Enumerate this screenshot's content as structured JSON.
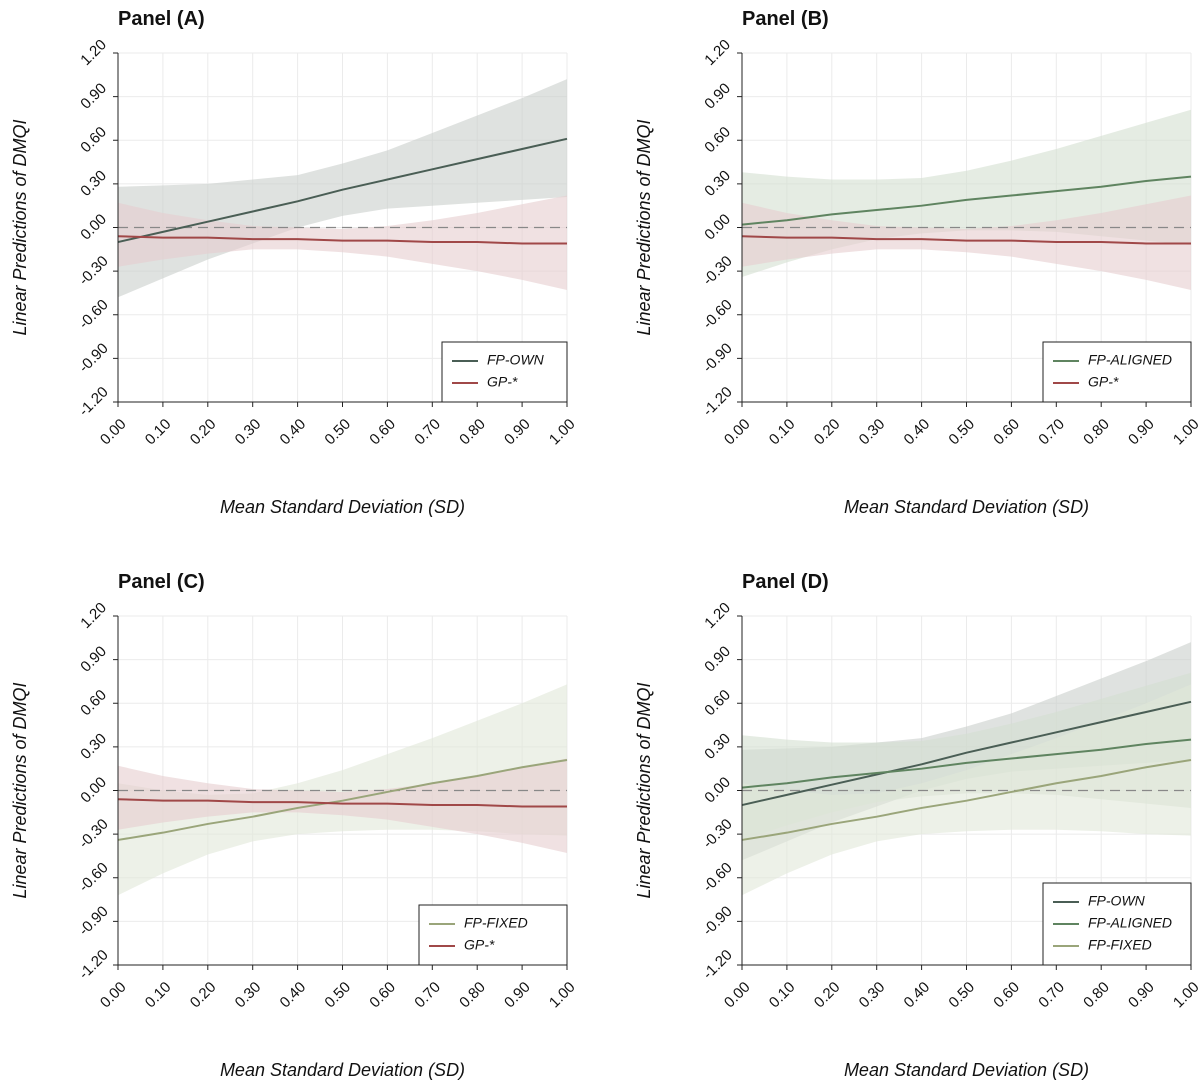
{
  "chart_data": [
    {
      "type": "line",
      "title": "Panel (A)",
      "xlabel": "Mean Standard Deviation (SD)",
      "ylabel": "Linear Predictions of DMQI",
      "x": [
        0,
        0.1,
        0.2,
        0.3,
        0.4,
        0.5,
        0.6,
        0.7,
        0.8,
        0.9,
        1.0
      ],
      "xlim": [
        0,
        1
      ],
      "ylim": [
        -1.2,
        1.2
      ],
      "xticks": [
        {
          "value": 0,
          "label": "0.00"
        },
        {
          "value": 0.1,
          "label": "0.10"
        },
        {
          "value": 0.2,
          "label": "0.20"
        },
        {
          "value": 0.3,
          "label": "0.30"
        },
        {
          "value": 0.4,
          "label": "0.40"
        },
        {
          "value": 0.5,
          "label": "0.50"
        },
        {
          "value": 0.6,
          "label": "0.60"
        },
        {
          "value": 0.7,
          "label": "0.70"
        },
        {
          "value": 0.8,
          "label": "0.80"
        },
        {
          "value": 0.9,
          "label": "0.90"
        },
        {
          "value": 1,
          "label": "1.00"
        }
      ],
      "yticks": [
        {
          "value": -1.2,
          "label": "-1.20"
        },
        {
          "value": -0.9,
          "label": "-0.90"
        },
        {
          "value": -0.6,
          "label": "-0.60"
        },
        {
          "value": -0.3,
          "label": "-0.30"
        },
        {
          "value": 0,
          "label": "0.00"
        },
        {
          "value": 0.3,
          "label": "0.30"
        },
        {
          "value": 0.6,
          "label": "0.60"
        },
        {
          "value": 0.9,
          "label": "0.90"
        },
        {
          "value": 1.2,
          "label": "1.20"
        }
      ],
      "grid": true,
      "reference_line": 0,
      "legend_position": "lower right",
      "series": [
        {
          "name": "FP-OWN",
          "color": "#4a5e55",
          "band_color": "#c9cecc",
          "values": [
            -0.1,
            -0.03,
            0.04,
            0.11,
            0.18,
            0.26,
            0.33,
            0.4,
            0.47,
            0.54,
            0.61
          ],
          "lower": [
            -0.48,
            -0.35,
            -0.22,
            -0.11,
            0.0,
            0.08,
            0.13,
            0.15,
            0.17,
            0.19,
            0.21
          ],
          "upper": [
            0.28,
            0.29,
            0.3,
            0.33,
            0.36,
            0.44,
            0.53,
            0.65,
            0.77,
            0.89,
            1.02
          ]
        },
        {
          "name": "GP-*",
          "color": "#a04848",
          "band_color": "#e6cdce",
          "values": [
            -0.06,
            -0.07,
            -0.07,
            -0.08,
            -0.08,
            -0.09,
            -0.09,
            -0.1,
            -0.1,
            -0.11,
            -0.11
          ],
          "lower": [
            -0.27,
            -0.22,
            -0.18,
            -0.15,
            -0.15,
            -0.17,
            -0.2,
            -0.25,
            -0.3,
            -0.36,
            -0.43
          ],
          "upper": [
            0.17,
            0.1,
            0.05,
            0.01,
            0.0,
            -0.01,
            0.01,
            0.05,
            0.1,
            0.16,
            0.22
          ]
        }
      ]
    },
    {
      "type": "line",
      "title": "Panel (B)",
      "xlabel": "Mean Standard Deviation (SD)",
      "ylabel": "Linear Predictions of DMQI",
      "x": [
        0,
        0.1,
        0.2,
        0.3,
        0.4,
        0.5,
        0.6,
        0.7,
        0.8,
        0.9,
        1.0
      ],
      "xlim": [
        0,
        1
      ],
      "ylim": [
        -1.2,
        1.2
      ],
      "xticks": [
        {
          "value": 0,
          "label": "0.00"
        },
        {
          "value": 0.1,
          "label": "0.10"
        },
        {
          "value": 0.2,
          "label": "0.20"
        },
        {
          "value": 0.3,
          "label": "0.30"
        },
        {
          "value": 0.4,
          "label": "0.40"
        },
        {
          "value": 0.5,
          "label": "0.50"
        },
        {
          "value": 0.6,
          "label": "0.60"
        },
        {
          "value": 0.7,
          "label": "0.70"
        },
        {
          "value": 0.8,
          "label": "0.80"
        },
        {
          "value": 0.9,
          "label": "0.90"
        },
        {
          "value": 1,
          "label": "1.00"
        }
      ],
      "yticks": [
        {
          "value": -1.2,
          "label": "-1.20"
        },
        {
          "value": -0.9,
          "label": "-0.90"
        },
        {
          "value": -0.6,
          "label": "-0.60"
        },
        {
          "value": -0.3,
          "label": "-0.30"
        },
        {
          "value": 0,
          "label": "0.00"
        },
        {
          "value": 0.3,
          "label": "0.30"
        },
        {
          "value": 0.6,
          "label": "0.60"
        },
        {
          "value": 0.9,
          "label": "0.90"
        },
        {
          "value": 1.2,
          "label": "1.20"
        }
      ],
      "grid": true,
      "reference_line": 0,
      "legend_position": "lower right",
      "series": [
        {
          "name": "FP-ALIGNED",
          "color": "#5f8460",
          "band_color": "#d3e0d1",
          "values": [
            0.02,
            0.05,
            0.09,
            0.12,
            0.15,
            0.19,
            0.22,
            0.25,
            0.28,
            0.32,
            0.35
          ],
          "lower": [
            -0.34,
            -0.24,
            -0.15,
            -0.08,
            -0.04,
            -0.02,
            -0.02,
            -0.03,
            -0.06,
            -0.09,
            -0.12
          ],
          "upper": [
            0.38,
            0.35,
            0.33,
            0.33,
            0.34,
            0.39,
            0.46,
            0.54,
            0.63,
            0.72,
            0.81
          ]
        },
        {
          "name": "GP-*",
          "color": "#a04848",
          "band_color": "#e6cdce",
          "values": [
            -0.06,
            -0.07,
            -0.07,
            -0.08,
            -0.08,
            -0.09,
            -0.09,
            -0.1,
            -0.1,
            -0.11,
            -0.11
          ],
          "lower": [
            -0.27,
            -0.22,
            -0.18,
            -0.15,
            -0.15,
            -0.17,
            -0.2,
            -0.25,
            -0.3,
            -0.36,
            -0.43
          ],
          "upper": [
            0.17,
            0.1,
            0.05,
            0.01,
            0.0,
            -0.01,
            0.01,
            0.05,
            0.1,
            0.16,
            0.22
          ]
        }
      ]
    },
    {
      "type": "line",
      "title": "Panel (C)",
      "xlabel": "Mean Standard Deviation (SD)",
      "ylabel": "Linear Predictions of DMQI",
      "x": [
        0,
        0.1,
        0.2,
        0.3,
        0.4,
        0.5,
        0.6,
        0.7,
        0.8,
        0.9,
        1.0
      ],
      "xlim": [
        0,
        1
      ],
      "ylim": [
        -1.2,
        1.2
      ],
      "xticks": [
        {
          "value": 0,
          "label": "0.00"
        },
        {
          "value": 0.1,
          "label": "0.10"
        },
        {
          "value": 0.2,
          "label": "0.20"
        },
        {
          "value": 0.3,
          "label": "0.30"
        },
        {
          "value": 0.4,
          "label": "0.40"
        },
        {
          "value": 0.5,
          "label": "0.50"
        },
        {
          "value": 0.6,
          "label": "0.60"
        },
        {
          "value": 0.7,
          "label": "0.70"
        },
        {
          "value": 0.8,
          "label": "0.80"
        },
        {
          "value": 0.9,
          "label": "0.90"
        },
        {
          "value": 1,
          "label": "1.00"
        }
      ],
      "yticks": [
        {
          "value": -1.2,
          "label": "-1.20"
        },
        {
          "value": -0.9,
          "label": "-0.90"
        },
        {
          "value": -0.6,
          "label": "-0.60"
        },
        {
          "value": -0.3,
          "label": "-0.30"
        },
        {
          "value": 0,
          "label": "0.00"
        },
        {
          "value": 0.3,
          "label": "0.30"
        },
        {
          "value": 0.6,
          "label": "0.60"
        },
        {
          "value": 0.9,
          "label": "0.90"
        },
        {
          "value": 1.2,
          "label": "1.20"
        }
      ],
      "grid": true,
      "reference_line": 0,
      "legend_position": "lower right",
      "series": [
        {
          "name": "FP-FIXED",
          "color": "#9aa57a",
          "band_color": "#e1e7d9",
          "values": [
            -0.34,
            -0.29,
            -0.23,
            -0.18,
            -0.12,
            -0.07,
            -0.01,
            0.05,
            0.1,
            0.16,
            0.21
          ],
          "lower": [
            -0.72,
            -0.57,
            -0.44,
            -0.35,
            -0.3,
            -0.28,
            -0.27,
            -0.27,
            -0.28,
            -0.3,
            -0.31
          ],
          "upper": [
            0.05,
            0.0,
            -0.03,
            -0.02,
            0.05,
            0.14,
            0.25,
            0.36,
            0.48,
            0.6,
            0.73
          ]
        },
        {
          "name": "GP-*",
          "color": "#a04848",
          "band_color": "#e6cdce",
          "values": [
            -0.06,
            -0.07,
            -0.07,
            -0.08,
            -0.08,
            -0.09,
            -0.09,
            -0.1,
            -0.1,
            -0.11,
            -0.11
          ],
          "lower": [
            -0.27,
            -0.22,
            -0.18,
            -0.15,
            -0.15,
            -0.17,
            -0.2,
            -0.25,
            -0.3,
            -0.36,
            -0.43
          ],
          "upper": [
            0.17,
            0.1,
            0.05,
            0.01,
            0.0,
            -0.01,
            0.01,
            0.05,
            0.1,
            0.16,
            0.22
          ]
        }
      ]
    },
    {
      "type": "line",
      "title": "Panel (D)",
      "xlabel": "Mean Standard Deviation (SD)",
      "ylabel": "Linear Predictions of DMQI",
      "x": [
        0,
        0.1,
        0.2,
        0.3,
        0.4,
        0.5,
        0.6,
        0.7,
        0.8,
        0.9,
        1.0
      ],
      "xlim": [
        0,
        1
      ],
      "ylim": [
        -1.2,
        1.2
      ],
      "xticks": [
        {
          "value": 0,
          "label": "0.00"
        },
        {
          "value": 0.1,
          "label": "0.10"
        },
        {
          "value": 0.2,
          "label": "0.20"
        },
        {
          "value": 0.3,
          "label": "0.30"
        },
        {
          "value": 0.4,
          "label": "0.40"
        },
        {
          "value": 0.5,
          "label": "0.50"
        },
        {
          "value": 0.6,
          "label": "0.60"
        },
        {
          "value": 0.7,
          "label": "0.70"
        },
        {
          "value": 0.8,
          "label": "0.80"
        },
        {
          "value": 0.9,
          "label": "0.90"
        },
        {
          "value": 1,
          "label": "1.00"
        }
      ],
      "yticks": [
        {
          "value": -1.2,
          "label": "-1.20"
        },
        {
          "value": -0.9,
          "label": "-0.90"
        },
        {
          "value": -0.6,
          "label": "-0.60"
        },
        {
          "value": -0.3,
          "label": "-0.30"
        },
        {
          "value": 0,
          "label": "0.00"
        },
        {
          "value": 0.3,
          "label": "0.30"
        },
        {
          "value": 0.6,
          "label": "0.60"
        },
        {
          "value": 0.9,
          "label": "0.90"
        },
        {
          "value": 1.2,
          "label": "1.20"
        }
      ],
      "grid": true,
      "reference_line": 0,
      "legend_position": "lower right",
      "series": [
        {
          "name": "FP-OWN",
          "color": "#4a5e55",
          "band_color": "#c9cecc",
          "values": [
            -0.1,
            -0.03,
            0.04,
            0.11,
            0.18,
            0.26,
            0.33,
            0.4,
            0.47,
            0.54,
            0.61
          ],
          "lower": [
            -0.48,
            -0.35,
            -0.22,
            -0.11,
            0.0,
            0.08,
            0.13,
            0.15,
            0.17,
            0.19,
            0.21
          ],
          "upper": [
            0.28,
            0.29,
            0.3,
            0.33,
            0.36,
            0.44,
            0.53,
            0.65,
            0.77,
            0.89,
            1.02
          ]
        },
        {
          "name": "FP-ALIGNED",
          "color": "#5f8460",
          "band_color": "#d3e0d1",
          "values": [
            0.02,
            0.05,
            0.09,
            0.12,
            0.15,
            0.19,
            0.22,
            0.25,
            0.28,
            0.32,
            0.35
          ],
          "lower": [
            -0.34,
            -0.24,
            -0.15,
            -0.08,
            -0.04,
            -0.02,
            -0.02,
            -0.03,
            -0.06,
            -0.09,
            -0.12
          ],
          "upper": [
            0.38,
            0.35,
            0.33,
            0.33,
            0.34,
            0.39,
            0.46,
            0.54,
            0.63,
            0.72,
            0.81
          ]
        },
        {
          "name": "FP-FIXED",
          "color": "#9aa57a",
          "band_color": "#e1e7d9",
          "values": [
            -0.34,
            -0.29,
            -0.23,
            -0.18,
            -0.12,
            -0.07,
            -0.01,
            0.05,
            0.1,
            0.16,
            0.21
          ],
          "lower": [
            -0.72,
            -0.57,
            -0.44,
            -0.35,
            -0.3,
            -0.28,
            -0.27,
            -0.27,
            -0.28,
            -0.3,
            -0.31
          ],
          "upper": [
            0.05,
            0.0,
            -0.03,
            -0.02,
            0.05,
            0.14,
            0.25,
            0.36,
            0.48,
            0.6,
            0.73
          ]
        }
      ]
    }
  ]
}
